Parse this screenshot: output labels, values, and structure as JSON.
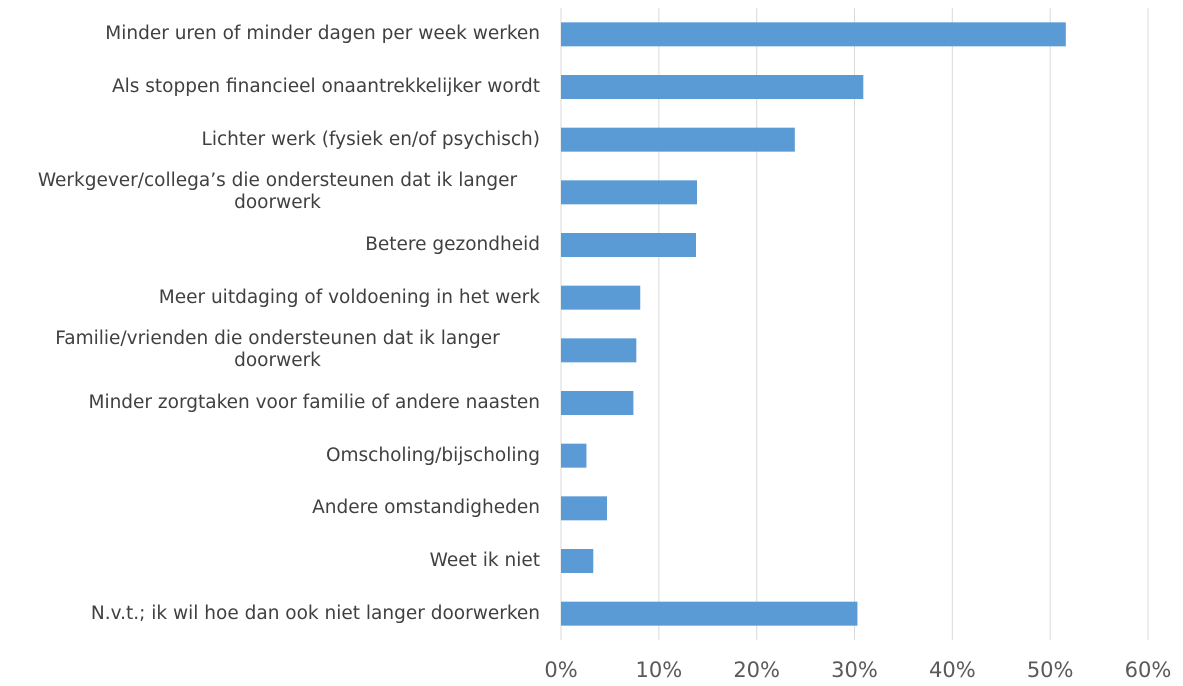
{
  "chart_data": {
    "type": "barh",
    "categories": [
      "Minder uren of minder dagen per week werken",
      "Als stoppen financieel onaantrekkelijker wordt",
      "Lichter werk (fysiek en/of psychisch)",
      "Werkgever/collega’s die ondersteunen dat ik langer doorwerk",
      "Betere gezondheid",
      "Meer uitdaging of voldoening in het werk",
      "Familie/vrienden die ondersteunen dat ik langer doorwerk",
      "Minder zorgtaken voor familie of andere naasten",
      "Omscholing/bijscholing",
      "Andere omstandigheden",
      "Weet ik niet",
      "N.v.t.; ik wil hoe dan ook niet langer doorwerken"
    ],
    "values": [
      51.6,
      30.9,
      23.9,
      13.9,
      13.8,
      8.1,
      7.7,
      7.4,
      2.6,
      4.7,
      3.3,
      30.3
    ],
    "color": "#5b9bd5",
    "xlim": [
      0,
      60
    ],
    "xticks": [
      {
        "value": 0,
        "label": "0%"
      },
      {
        "value": 10,
        "label": "10%"
      },
      {
        "value": 20,
        "label": "20%"
      },
      {
        "value": 30,
        "label": "30%"
      },
      {
        "value": 40,
        "label": "40%"
      },
      {
        "value": 50,
        "label": "50%"
      },
      {
        "value": 60,
        "label": "60%"
      }
    ],
    "grid": true
  }
}
